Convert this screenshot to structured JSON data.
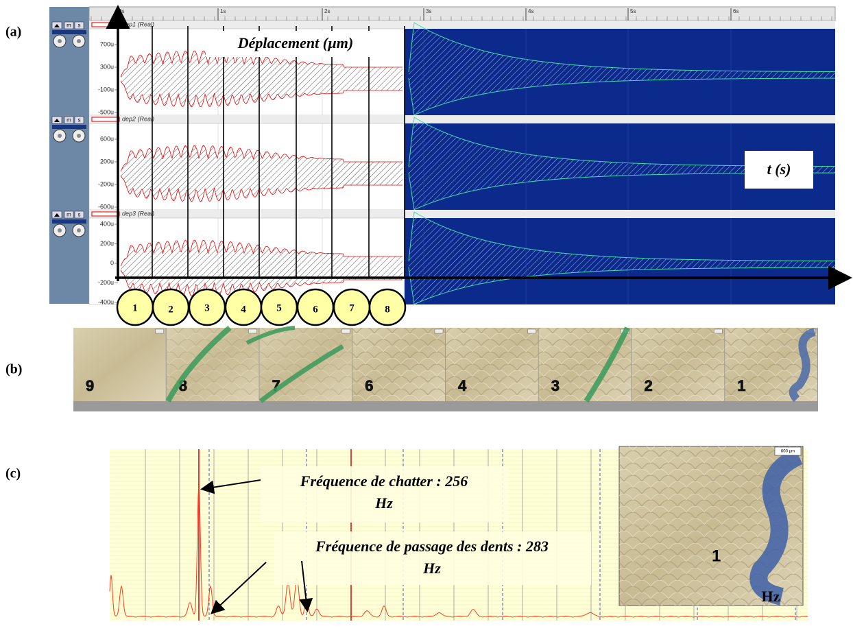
{
  "panel_labels": [
    "(a)",
    "(b)",
    "(c)"
  ],
  "panel_a": {
    "time_ticks": [
      "0s",
      "1s",
      "2s",
      "3s",
      "4s",
      "5s",
      "6s"
    ],
    "buttons": [
      "m",
      "s"
    ],
    "tracks": [
      {
        "name": "dep1 (Real)",
        "y_labels": [
          "700u",
          "300u",
          "-100u",
          "-500u"
        ]
      },
      {
        "name": "dep2 (Real)",
        "y_labels": [
          "600u",
          "200u",
          "-200u",
          "-600u"
        ]
      },
      {
        "name": "dep3 (Real)",
        "y_labels": [
          "400u",
          "200u",
          "0",
          "-200u",
          "-400u"
        ]
      }
    ],
    "y_title": "Déplacement (µm)",
    "x_title": "t (s)",
    "zones": [
      "1",
      "2",
      "3",
      "4",
      "5",
      "6",
      "7",
      "8"
    ]
  },
  "panel_b": {
    "photo_labels": [
      "9",
      "8",
      "7",
      "6",
      "4",
      "3",
      "2",
      "1"
    ]
  },
  "panel_c": {
    "annotations": [
      {
        "line1": "Fréquence de chatter : 256",
        "line2": "Hz"
      },
      {
        "line1": "Fréquence de passage des dents : 283",
        "line2": "Hz"
      }
    ],
    "x_unit": "Hz",
    "inset_label": "1",
    "scale_bar": "600 µm"
  }
}
